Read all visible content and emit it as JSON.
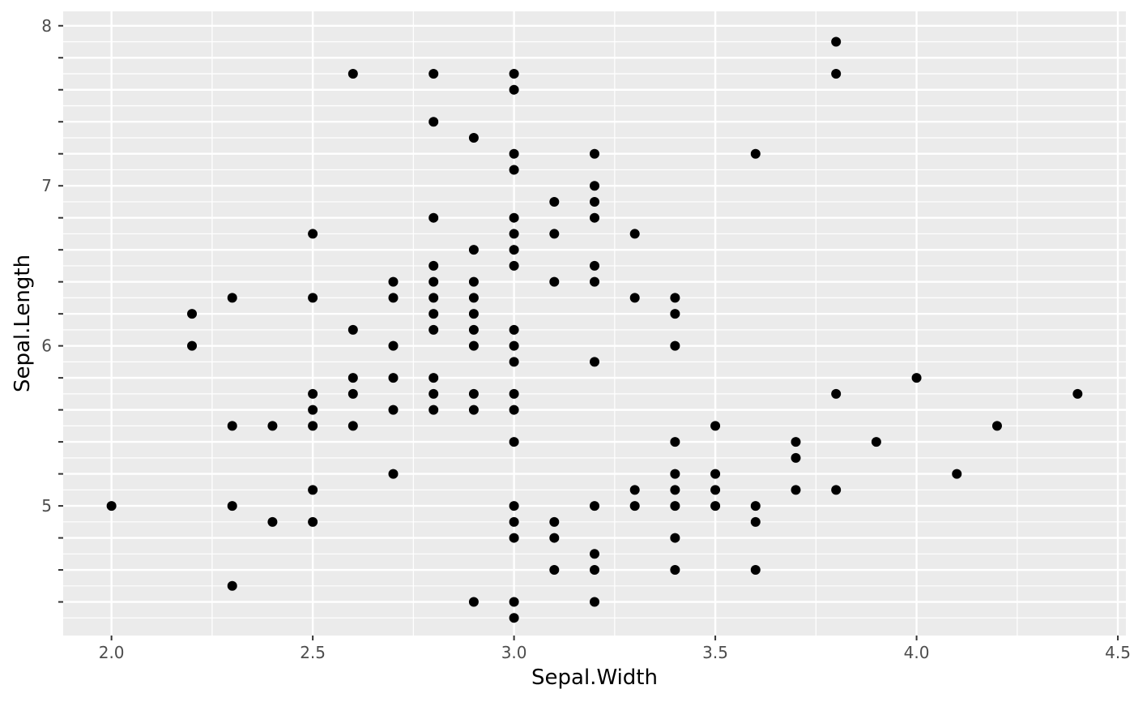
{
  "chart_data": {
    "type": "scatter",
    "title": "",
    "xlabel": "Sepal.Width",
    "ylabel": "Sepal.Length",
    "xlim": [
      1.88,
      4.52
    ],
    "ylim": [
      4.19,
      8.09
    ],
    "x_ticks": [
      2.0,
      2.5,
      3.0,
      3.5,
      4.0,
      4.5
    ],
    "x_tick_labels": [
      "2.0",
      "2.5",
      "3.0",
      "3.5",
      "4.0",
      "4.5"
    ],
    "y_ticks": [
      5,
      6,
      7,
      8
    ],
    "y_tick_labels": [
      "5",
      "6",
      "7",
      "8"
    ],
    "y_minor_ticks": [
      4.3,
      4.5,
      4.7,
      4.9,
      5.1,
      5.3,
      5.5,
      5.7,
      5.9,
      6.1,
      6.3,
      6.5,
      6.7,
      6.9,
      7.1,
      7.3,
      7.5,
      7.7,
      7.9
    ],
    "grid": true,
    "panel_background": "#ebebeb",
    "grid_color": "#ffffff",
    "point_color": "#000000",
    "points": [
      {
        "x": 2.0,
        "y": 5.0
      },
      {
        "x": 2.2,
        "y": 6.2
      },
      {
        "x": 2.2,
        "y": 6.0
      },
      {
        "x": 2.3,
        "y": 6.3
      },
      {
        "x": 2.3,
        "y": 5.5
      },
      {
        "x": 2.3,
        "y": 5.0
      },
      {
        "x": 2.3,
        "y": 4.5
      },
      {
        "x": 2.4,
        "y": 5.5
      },
      {
        "x": 2.4,
        "y": 4.9
      },
      {
        "x": 2.5,
        "y": 6.7
      },
      {
        "x": 2.5,
        "y": 6.3
      },
      {
        "x": 2.5,
        "y": 5.7
      },
      {
        "x": 2.5,
        "y": 5.6
      },
      {
        "x": 2.5,
        "y": 5.5
      },
      {
        "x": 2.5,
        "y": 5.1
      },
      {
        "x": 2.5,
        "y": 4.9
      },
      {
        "x": 2.6,
        "y": 7.7
      },
      {
        "x": 2.6,
        "y": 6.1
      },
      {
        "x": 2.6,
        "y": 5.8
      },
      {
        "x": 2.6,
        "y": 5.7
      },
      {
        "x": 2.6,
        "y": 5.5
      },
      {
        "x": 2.7,
        "y": 6.4
      },
      {
        "x": 2.7,
        "y": 6.3
      },
      {
        "x": 2.7,
        "y": 6.0
      },
      {
        "x": 2.7,
        "y": 5.8
      },
      {
        "x": 2.7,
        "y": 5.6
      },
      {
        "x": 2.7,
        "y": 5.2
      },
      {
        "x": 2.8,
        "y": 7.7
      },
      {
        "x": 2.8,
        "y": 7.4
      },
      {
        "x": 2.8,
        "y": 6.8
      },
      {
        "x": 2.8,
        "y": 6.5
      },
      {
        "x": 2.8,
        "y": 6.4
      },
      {
        "x": 2.8,
        "y": 6.3
      },
      {
        "x": 2.8,
        "y": 6.2
      },
      {
        "x": 2.8,
        "y": 6.1
      },
      {
        "x": 2.8,
        "y": 5.8
      },
      {
        "x": 2.8,
        "y": 5.7
      },
      {
        "x": 2.8,
        "y": 5.6
      },
      {
        "x": 2.9,
        "y": 7.3
      },
      {
        "x": 2.9,
        "y": 6.6
      },
      {
        "x": 2.9,
        "y": 6.4
      },
      {
        "x": 2.9,
        "y": 6.3
      },
      {
        "x": 2.9,
        "y": 6.2
      },
      {
        "x": 2.9,
        "y": 6.1
      },
      {
        "x": 2.9,
        "y": 6.0
      },
      {
        "x": 2.9,
        "y": 5.7
      },
      {
        "x": 2.9,
        "y": 5.6
      },
      {
        "x": 2.9,
        "y": 4.4
      },
      {
        "x": 3.0,
        "y": 7.7
      },
      {
        "x": 3.0,
        "y": 7.6
      },
      {
        "x": 3.0,
        "y": 7.2
      },
      {
        "x": 3.0,
        "y": 7.1
      },
      {
        "x": 3.0,
        "y": 6.8
      },
      {
        "x": 3.0,
        "y": 6.7
      },
      {
        "x": 3.0,
        "y": 6.6
      },
      {
        "x": 3.0,
        "y": 6.5
      },
      {
        "x": 3.0,
        "y": 6.1
      },
      {
        "x": 3.0,
        "y": 6.0
      },
      {
        "x": 3.0,
        "y": 5.9
      },
      {
        "x": 3.0,
        "y": 5.7
      },
      {
        "x": 3.0,
        "y": 5.6
      },
      {
        "x": 3.0,
        "y": 5.4
      },
      {
        "x": 3.0,
        "y": 5.0
      },
      {
        "x": 3.0,
        "y": 4.9
      },
      {
        "x": 3.0,
        "y": 4.8
      },
      {
        "x": 3.0,
        "y": 4.4
      },
      {
        "x": 3.0,
        "y": 4.3
      },
      {
        "x": 3.1,
        "y": 6.9
      },
      {
        "x": 3.1,
        "y": 6.7
      },
      {
        "x": 3.1,
        "y": 6.4
      },
      {
        "x": 3.1,
        "y": 4.9
      },
      {
        "x": 3.1,
        "y": 4.8
      },
      {
        "x": 3.1,
        "y": 4.6
      },
      {
        "x": 3.2,
        "y": 7.2
      },
      {
        "x": 3.2,
        "y": 7.0
      },
      {
        "x": 3.2,
        "y": 6.9
      },
      {
        "x": 3.2,
        "y": 6.8
      },
      {
        "x": 3.2,
        "y": 6.5
      },
      {
        "x": 3.2,
        "y": 6.4
      },
      {
        "x": 3.2,
        "y": 5.9
      },
      {
        "x": 3.2,
        "y": 5.0
      },
      {
        "x": 3.2,
        "y": 4.7
      },
      {
        "x": 3.2,
        "y": 4.6
      },
      {
        "x": 3.2,
        "y": 4.4
      },
      {
        "x": 3.3,
        "y": 6.7
      },
      {
        "x": 3.3,
        "y": 6.3
      },
      {
        "x": 3.3,
        "y": 5.1
      },
      {
        "x": 3.3,
        "y": 5.0
      },
      {
        "x": 3.4,
        "y": 6.3
      },
      {
        "x": 3.4,
        "y": 6.2
      },
      {
        "x": 3.4,
        "y": 6.0
      },
      {
        "x": 3.4,
        "y": 5.4
      },
      {
        "x": 3.4,
        "y": 5.2
      },
      {
        "x": 3.4,
        "y": 5.1
      },
      {
        "x": 3.4,
        "y": 5.0
      },
      {
        "x": 3.4,
        "y": 4.8
      },
      {
        "x": 3.4,
        "y": 4.6
      },
      {
        "x": 3.5,
        "y": 5.5
      },
      {
        "x": 3.5,
        "y": 5.2
      },
      {
        "x": 3.5,
        "y": 5.1
      },
      {
        "x": 3.5,
        "y": 5.0
      },
      {
        "x": 3.6,
        "y": 7.2
      },
      {
        "x": 3.6,
        "y": 5.0
      },
      {
        "x": 3.6,
        "y": 4.9
      },
      {
        "x": 3.6,
        "y": 4.6
      },
      {
        "x": 3.7,
        "y": 5.4
      },
      {
        "x": 3.7,
        "y": 5.3
      },
      {
        "x": 3.7,
        "y": 5.1
      },
      {
        "x": 3.8,
        "y": 7.9
      },
      {
        "x": 3.8,
        "y": 7.7
      },
      {
        "x": 3.8,
        "y": 5.7
      },
      {
        "x": 3.8,
        "y": 5.1
      },
      {
        "x": 3.9,
        "y": 5.4
      },
      {
        "x": 4.0,
        "y": 5.8
      },
      {
        "x": 4.1,
        "y": 5.2
      },
      {
        "x": 4.2,
        "y": 5.5
      },
      {
        "x": 4.4,
        "y": 5.7
      }
    ]
  }
}
